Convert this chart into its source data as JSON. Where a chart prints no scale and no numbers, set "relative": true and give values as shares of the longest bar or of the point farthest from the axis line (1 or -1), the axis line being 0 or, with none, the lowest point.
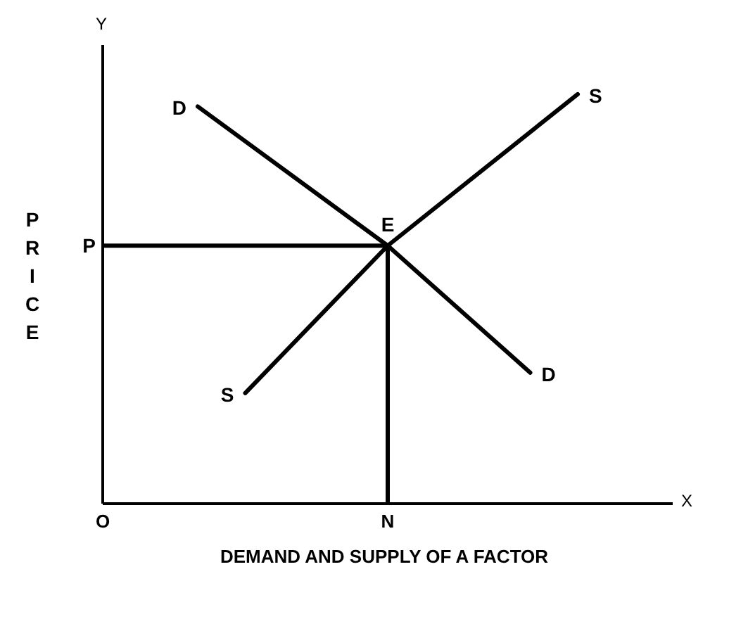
{
  "chart_data": {
    "type": "line",
    "relative": true,
    "xlabel": "DEMAND AND SUPPLY OF A FACTOR",
    "ylabel": "PRICE",
    "categories": [
      "O",
      null,
      null,
      null,
      null,
      null,
      "N",
      null,
      null,
      null,
      null,
      null,
      null
    ],
    "series": [
      {
        "name": "D",
        "color": "#000000",
        "values": [
          null,
          null,
          0.97,
          null,
          null,
          null,
          0.63,
          null,
          null,
          0.32,
          null,
          null,
          null
        ]
      },
      {
        "name": "S",
        "color": "#000000",
        "values": [
          null,
          null,
          null,
          0.27,
          null,
          null,
          0.63,
          null,
          null,
          null,
          1,
          null,
          null
        ]
      }
    ],
    "ref_lines": [
      {
        "axis": "y",
        "value": 0.63,
        "label": "P",
        "color": "#000000"
      },
      {
        "axis": "x",
        "value": "N",
        "color": "#000000"
      }
    ],
    "annotations": [
      {
        "text": "E",
        "x": "N",
        "y": 0.63
      },
      "Y",
      "X"
    ]
  }
}
